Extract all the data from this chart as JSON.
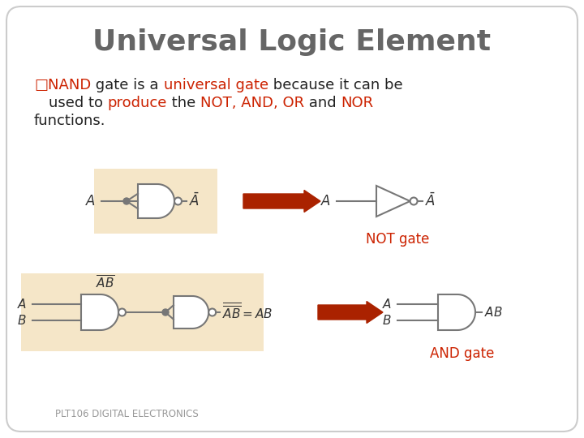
{
  "title": "Universal Logic Element",
  "title_color": "#666666",
  "background_color": "#ffffff",
  "border_color": "#cccccc",
  "text_fs": 13.0,
  "not_gate_label": "NOT gate",
  "and_gate_label": "AND gate",
  "gate_label_color": "#cc2200",
  "footer": "PLT106 DIGITAL ELECTRONICS",
  "footer_color": "#999999",
  "highlight_color": "#f5e6c8",
  "arrow_color": "#aa2200",
  "gate_line_color": "#777777",
  "gate_fill_color": "#ffffff",
  "text_dark": "#222222",
  "text_red": "#cc2200"
}
